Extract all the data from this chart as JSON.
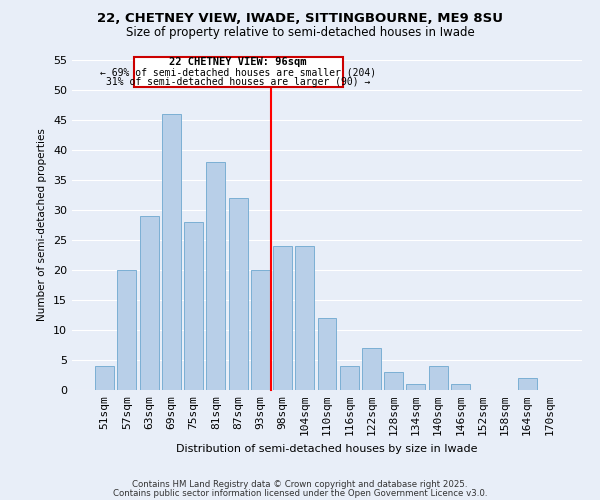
{
  "title": "22, CHETNEY VIEW, IWADE, SITTINGBOURNE, ME9 8SU",
  "subtitle": "Size of property relative to semi-detached houses in Iwade",
  "xlabel": "Distribution of semi-detached houses by size in Iwade",
  "ylabel": "Number of semi-detached properties",
  "bar_labels": [
    "51sqm",
    "57sqm",
    "63sqm",
    "69sqm",
    "75sqm",
    "81sqm",
    "87sqm",
    "93sqm",
    "98sqm",
    "104sqm",
    "110sqm",
    "116sqm",
    "122sqm",
    "128sqm",
    "134sqm",
    "140sqm",
    "146sqm",
    "152sqm",
    "158sqm",
    "164sqm",
    "170sqm"
  ],
  "bar_values": [
    4,
    20,
    29,
    46,
    28,
    38,
    32,
    20,
    24,
    24,
    12,
    4,
    7,
    3,
    1,
    4,
    1,
    0,
    0,
    2,
    0
  ],
  "bar_color": "#b8cfe8",
  "bar_edge_color": "#7bafd4",
  "ylim": [
    0,
    55
  ],
  "yticks": [
    0,
    5,
    10,
    15,
    20,
    25,
    30,
    35,
    40,
    45,
    50,
    55
  ],
  "marker_label": "22 CHETNEY VIEW: 96sqm",
  "annotation_line1": "← 69% of semi-detached houses are smaller (204)",
  "annotation_line2": "31% of semi-detached houses are larger (90) →",
  "background_color": "#e8eef8",
  "grid_color": "#ffffff",
  "footer_line1": "Contains HM Land Registry data © Crown copyright and database right 2025.",
  "footer_line2": "Contains public sector information licensed under the Open Government Licence v3.0.",
  "title_fontsize": 9.5,
  "subtitle_fontsize": 8.5,
  "footer_fontsize": 6.2
}
